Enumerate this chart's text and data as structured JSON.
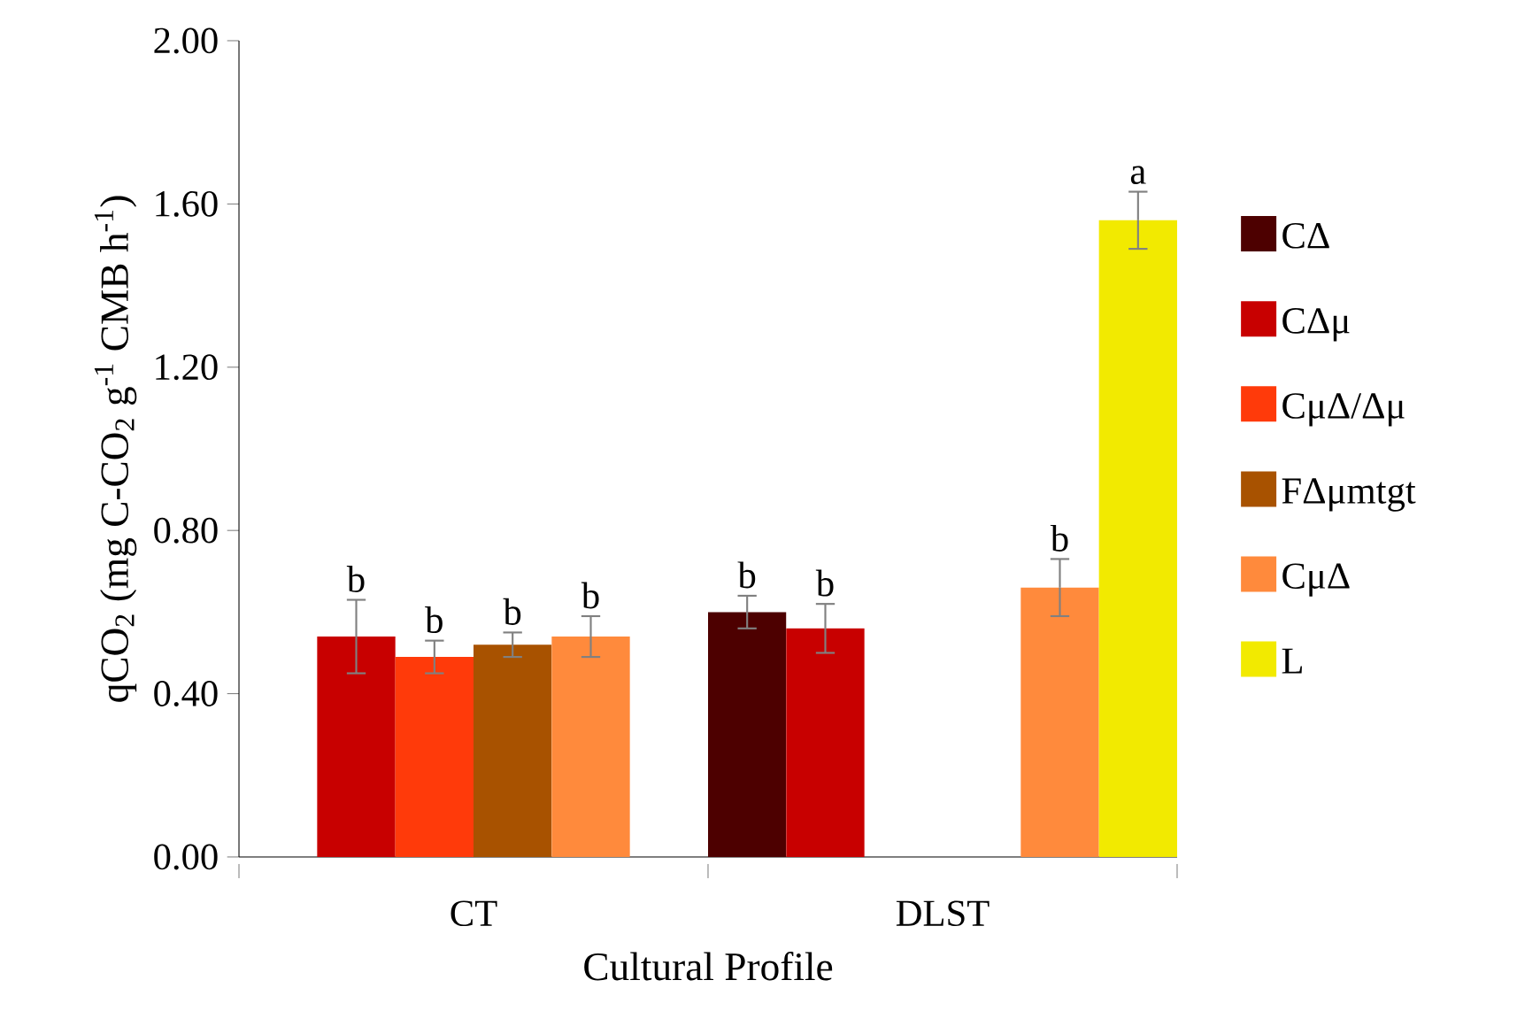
{
  "chart_data": {
    "type": "bar",
    "xlabel": "Cultural Profile",
    "ylabel": "qCO$_{2}$  (mg C-CO$_{2}$ g$^{-1}$ CMB h$^{-1}$)",
    "categories": [
      "CT",
      "DLST"
    ],
    "series": [
      {
        "name": "CΔ",
        "color": "#4d0000",
        "values": [
          null,
          0.6
        ],
        "errors": [
          null,
          0.04
        ],
        "value_labels": [
          null,
          "b"
        ]
      },
      {
        "name": "CΔμ",
        "color": "#c80000",
        "values": [
          0.54,
          0.56
        ],
        "errors": [
          0.09,
          0.06
        ],
        "value_labels": [
          "b",
          "b"
        ]
      },
      {
        "name": "CμΔ/Δμ",
        "color": "#ff3a0a",
        "values": [
          0.49,
          null
        ],
        "errors": [
          0.04,
          null
        ],
        "value_labels": [
          "b",
          null
        ]
      },
      {
        "name": "FΔμmtgt",
        "color": "#a85200",
        "values": [
          0.52,
          null
        ],
        "errors": [
          0.03,
          null
        ],
        "value_labels": [
          "b",
          null
        ]
      },
      {
        "name": "CμΔ",
        "color": "#ff8a3c",
        "values": [
          0.54,
          0.66
        ],
        "errors": [
          0.05,
          0.07
        ],
        "value_labels": [
          "b",
          "b"
        ]
      },
      {
        "name": "L",
        "color": "#f2ea00",
        "values": [
          null,
          1.56
        ],
        "errors": [
          null,
          0.07
        ],
        "value_labels": [
          null,
          "a"
        ]
      }
    ],
    "ylim": [
      0,
      2.0
    ],
    "yticks": [
      {
        "value": 0,
        "label": "0.00"
      },
      {
        "value": 0.4,
        "label": "0.40"
      },
      {
        "value": 0.8,
        "label": "0.80"
      },
      {
        "value": 1.2,
        "label": "1.20"
      },
      {
        "value": 1.6,
        "label": "1.60"
      },
      {
        "value": 2.0,
        "label": "2.00"
      }
    ],
    "grid": false,
    "legend": "right"
  }
}
